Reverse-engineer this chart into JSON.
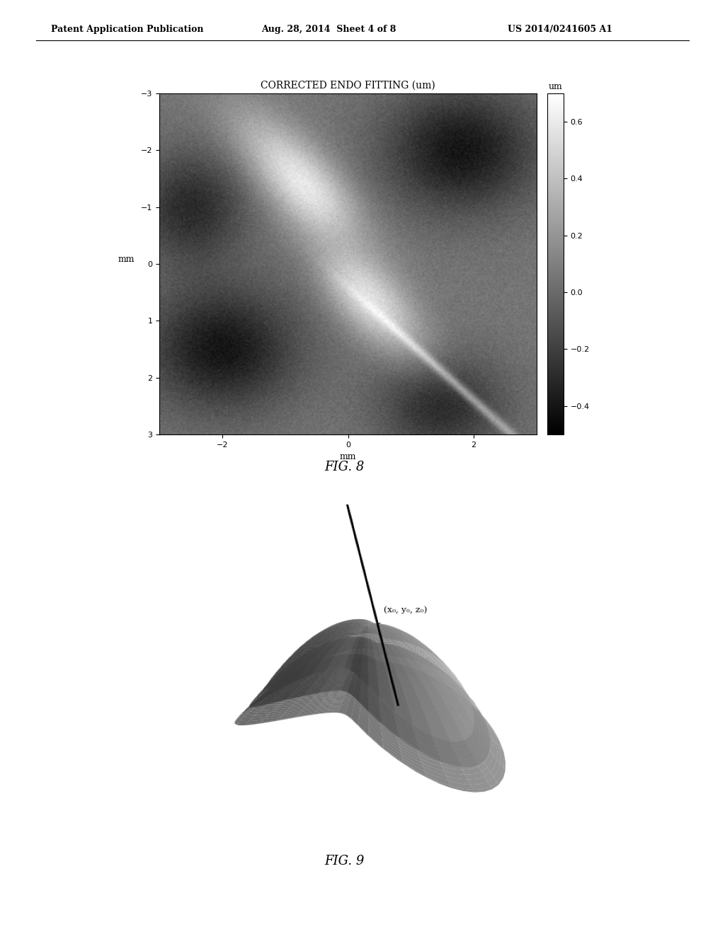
{
  "page_header_left": "Patent Application Publication",
  "page_header_mid": "Aug. 28, 2014  Sheet 4 of 8",
  "page_header_right": "US 2014/0241605 A1",
  "fig8_title": "CORRECTED ENDO FITTING (um)",
  "fig8_xlabel": "mm",
  "fig8_ylabel": "mm",
  "fig8_xticks": [
    -2,
    0,
    2
  ],
  "fig8_yticks": [
    -3,
    -2,
    -1,
    0,
    1,
    2,
    3
  ],
  "fig8_cbar_label": "um",
  "fig8_cbar_ticks": [
    0.6,
    0.4,
    0.2,
    0,
    -0.2,
    -0.4
  ],
  "fig8_vmin": -0.5,
  "fig8_vmax": 0.7,
  "fig8_label": "FIG. 8",
  "fig9_label": "FIG. 9",
  "fig9_annotation": "(x₀, y₀, z₀)",
  "background_color": "#ffffff",
  "header_fontsize": 9,
  "title_fontsize": 10,
  "label_fontsize": 9,
  "tick_fontsize": 8,
  "fig_label_fontsize": 13
}
